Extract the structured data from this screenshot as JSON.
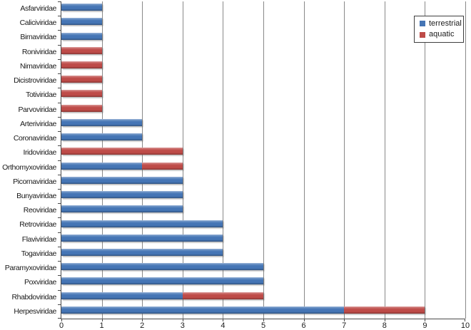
{
  "chart_data": {
    "type": "bar",
    "orientation": "horizontal",
    "stacked": true,
    "title": "",
    "xlabel": "",
    "ylabel": "",
    "xlim": [
      0,
      10
    ],
    "x_ticks": [
      0,
      1,
      2,
      3,
      4,
      5,
      6,
      7,
      8,
      9,
      10
    ],
    "grid": "vertical",
    "legend_position": "top-right",
    "categories_top_to_bottom": [
      "Asfarviridae",
      "Caliciviridae",
      "Birnaviridae",
      "Roniviridae",
      "Nimaviridae",
      "Dicistroviridae",
      "Totiviridae",
      "Parvoviridae",
      "Arteriviridae",
      "Coronaviridae",
      "Iridoviridae",
      "Orthomyxoviridae",
      "Picornaviridae",
      "Bunyaviridae",
      "Reoviridae",
      "Retroviridae",
      "Flaviviridae",
      "Togaviridae",
      "Paramyxoviridae",
      "Poxviridae",
      "Rhabdoviridae",
      "Herpesviridae"
    ],
    "series": [
      {
        "name": "terrestrial",
        "color": "#4575B5",
        "values": [
          1,
          1,
          1,
          0,
          0,
          0,
          0,
          0,
          2,
          2,
          0,
          2,
          3,
          3,
          3,
          4,
          4,
          4,
          5,
          5,
          3,
          7
        ]
      },
      {
        "name": "aquatic",
        "color": "#BE4B48",
        "values": [
          0,
          0,
          0,
          1,
          1,
          1,
          1,
          1,
          0,
          0,
          3,
          1,
          0,
          0,
          0,
          0,
          0,
          0,
          0,
          0,
          2,
          2
        ]
      }
    ]
  },
  "style_colors": {
    "gridline": "#898989",
    "axis": "#4a4a4a",
    "text": "#1a1a1a",
    "legend_border": "#3f3f3f",
    "background": "#ffffff"
  }
}
